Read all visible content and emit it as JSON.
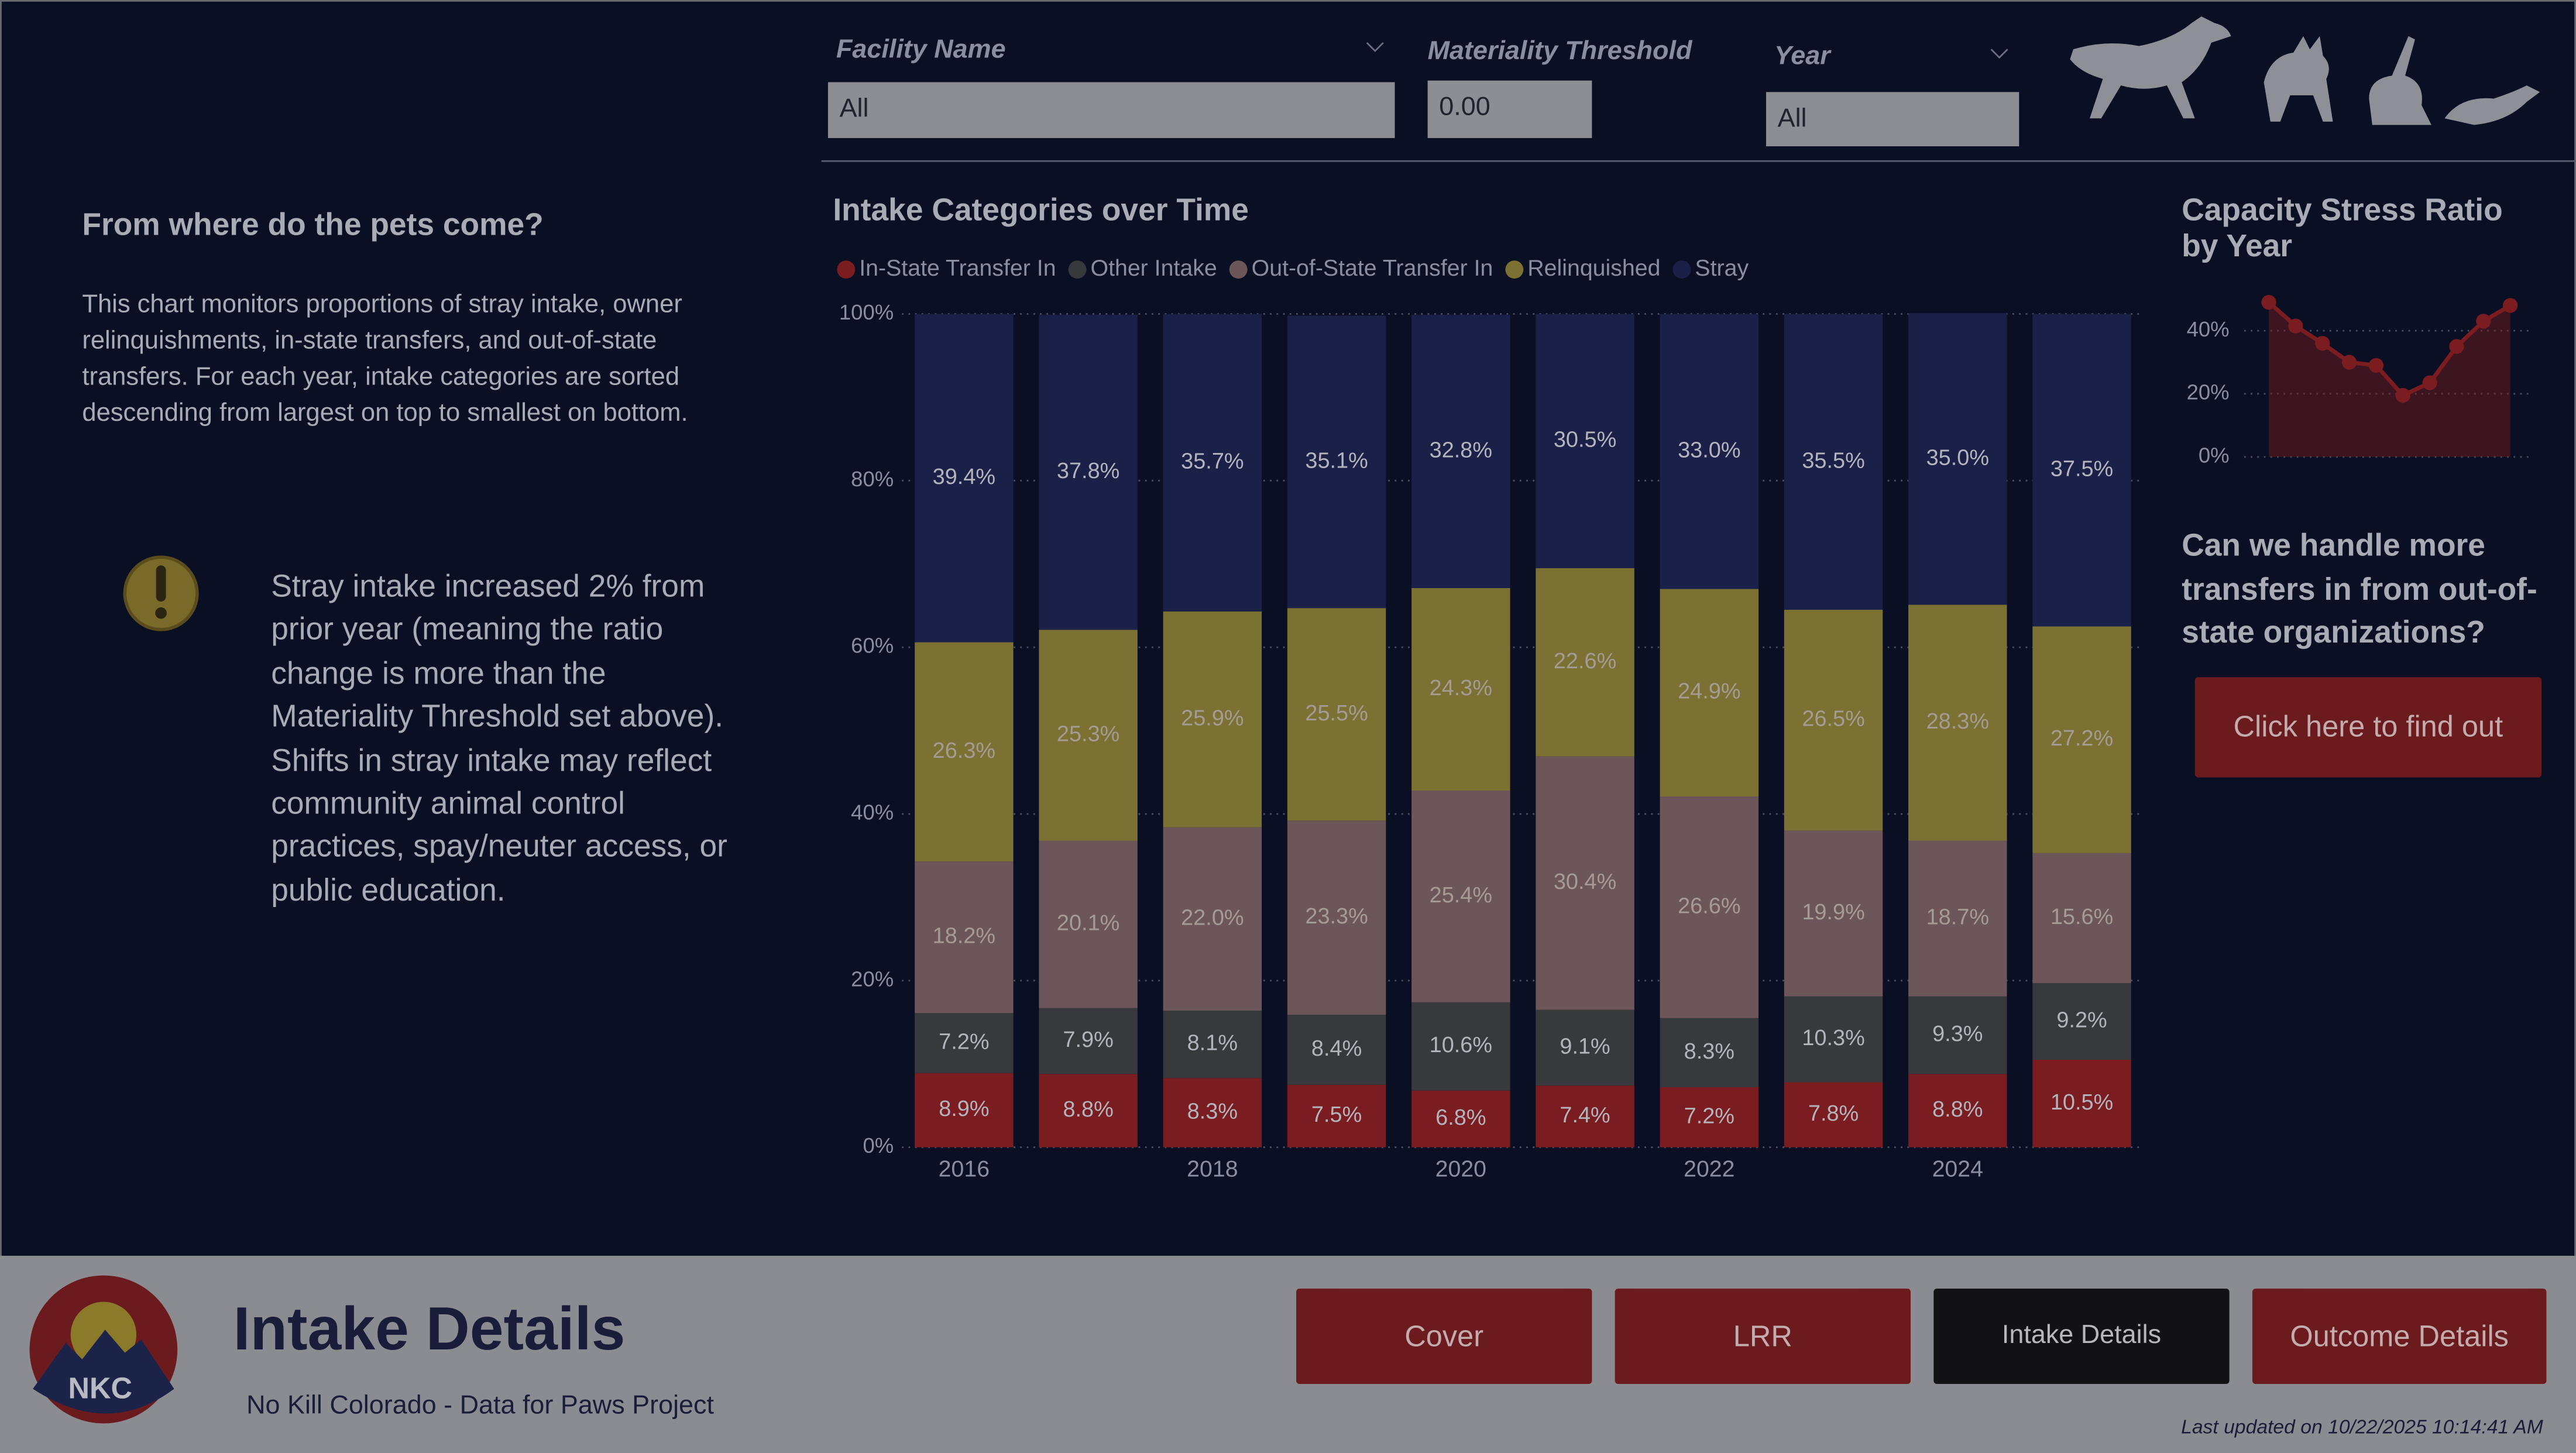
{
  "filters": [
    {
      "label": "Facility Name",
      "value": "All"
    },
    {
      "label": "Materiality Threshold",
      "value": "0.00"
    },
    {
      "label": "Year",
      "value": "All"
    }
  ],
  "left_panel": {
    "heading": "From where do the pets come?",
    "description": "This chart monitors proportions of stray intake, owner relinquishments, in-state transfers, and out-of-state transfers. For each year, intake categories are sorted descending from largest on top to smallest on bottom.",
    "insight": "Stray intake increased 2% from prior year (meaning the ratio change is more than the Materiality Threshold set above). Shifts in stray intake may reflect community animal control practices, spay/neuter access, or public education."
  },
  "right_panel": {
    "question": "Can we handle more transfers in from out-of-state organizations?",
    "button": "Click here to find out"
  },
  "footer": {
    "logo": "NKC",
    "title": "Intake Details",
    "subtitle": "No Kill Colorado - Data for Paws Project",
    "nav": [
      "Cover",
      "LRR",
      "Intake Details",
      "Outcome Details"
    ],
    "last_updated": "Last updated on 10/22/2025 10:14:41 AM"
  },
  "chart_data": [
    {
      "type": "stacked_bar",
      "title": "Intake Categories over Time",
      "categories": [
        "2016",
        null,
        "2018",
        null,
        "2020",
        null,
        "2022",
        null,
        "2024",
        null
      ],
      "ylim": [
        0,
        100
      ],
      "yticks": [
        {
          "value": 0,
          "label": "0%"
        },
        {
          "value": 20,
          "label": "20%"
        },
        {
          "value": 40,
          "label": "40%"
        },
        {
          "value": 60,
          "label": "60%"
        },
        {
          "value": 80,
          "label": "80%"
        },
        {
          "value": 100,
          "label": "100%"
        }
      ],
      "grid": true,
      "series": [
        {
          "name": "In-State Transfer In",
          "color": "#7a1c20",
          "values": [
            8.9,
            8.8,
            8.3,
            7.5,
            6.8,
            7.4,
            7.2,
            7.8,
            8.8,
            10.5
          ],
          "value_labels": [
            "8.9%",
            "8.8%",
            "8.3%",
            "7.5%",
            "6.8%",
            "7.4%",
            "7.2%",
            "7.8%",
            "8.8%",
            "10.5%"
          ]
        },
        {
          "name": "Other Intake",
          "color": "#38393d",
          "values": [
            7.2,
            7.9,
            8.1,
            8.4,
            10.6,
            9.1,
            8.3,
            10.3,
            9.3,
            9.2
          ],
          "value_labels": [
            "7.2%",
            "7.9%",
            "8.1%",
            "8.4%",
            "10.6%",
            "9.1%",
            "8.3%",
            "10.3%",
            "9.3%",
            "9.2%"
          ]
        },
        {
          "name": "Out-of-State Transfer In",
          "color": "#6d565a",
          "values": [
            18.2,
            20.1,
            22.0,
            23.3,
            25.4,
            30.4,
            26.6,
            19.9,
            18.7,
            15.6
          ],
          "value_labels": [
            "18.2%",
            "20.1%",
            "22.0%",
            "23.3%",
            "25.4%",
            "30.4%",
            "26.6%",
            "19.9%",
            "18.7%",
            "15.6%"
          ]
        },
        {
          "name": "Relinquished",
          "color": "#7b7132",
          "values": [
            26.3,
            25.3,
            25.9,
            25.5,
            24.3,
            22.6,
            24.9,
            26.5,
            28.3,
            27.2
          ],
          "value_labels": [
            "26.3%",
            "25.3%",
            "25.9%",
            "25.5%",
            "24.3%",
            "22.6%",
            "24.9%",
            "26.5%",
            "28.3%",
            "27.2%"
          ]
        },
        {
          "name": "Stray",
          "color": "#1b2049",
          "values": [
            39.4,
            37.8,
            35.7,
            35.1,
            32.8,
            30.5,
            33.0,
            35.5,
            35.0,
            37.5
          ],
          "value_labels": [
            "39.4%",
            "37.8%",
            "35.7%",
            "35.1%",
            "32.8%",
            "30.5%",
            "33.0%",
            "35.5%",
            "35.0%",
            "37.5%"
          ]
        }
      ]
    },
    {
      "type": "line",
      "title": "Capacity Stress Ratio by Year",
      "color": "#7a1c20",
      "values": [
        49,
        41.5,
        36,
        30,
        29,
        19.5,
        23.5,
        35,
        43,
        48
      ],
      "ylim": [
        0,
        50
      ],
      "yticks": [
        {
          "value": 0,
          "label": "0%"
        },
        {
          "value": 20,
          "label": "20%"
        },
        {
          "value": 40,
          "label": "40%"
        }
      ],
      "grid": true
    }
  ]
}
